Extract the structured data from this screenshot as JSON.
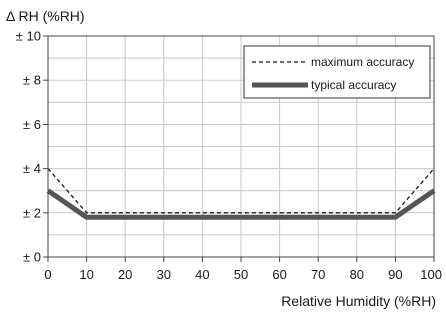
{
  "chart_data": {
    "type": "line",
    "ylabel": "Δ RH (%RH)",
    "xlabel": "Relative Humidity (%RH)",
    "xlim": [
      0,
      100
    ],
    "ylim": [
      0,
      10
    ],
    "x_ticks": [
      0,
      10,
      20,
      30,
      40,
      50,
      60,
      70,
      80,
      90,
      100
    ],
    "x_tick_labels": [
      "0",
      "10",
      "20",
      "30",
      "40",
      "50",
      "60",
      "70",
      "80",
      "90",
      "100"
    ],
    "y_ticks": [
      0,
      2,
      4,
      6,
      8,
      10
    ],
    "y_tick_labels": [
      "± 0",
      "± 2",
      "± 4",
      "± 6",
      "± 8",
      "± 10"
    ],
    "grid": true,
    "legend_position": "top-right",
    "series": [
      {
        "name": "maximum accuracy",
        "style": "dashed",
        "color": "#1a1a1a",
        "x": [
          0,
          10,
          90,
          100
        ],
        "y": [
          4,
          2,
          2,
          4
        ]
      },
      {
        "name": "typical accuracy",
        "style": "solid-thick",
        "color": "#555555",
        "x": [
          0,
          10,
          90,
          100
        ],
        "y": [
          3,
          1.8,
          1.8,
          3
        ]
      }
    ]
  }
}
